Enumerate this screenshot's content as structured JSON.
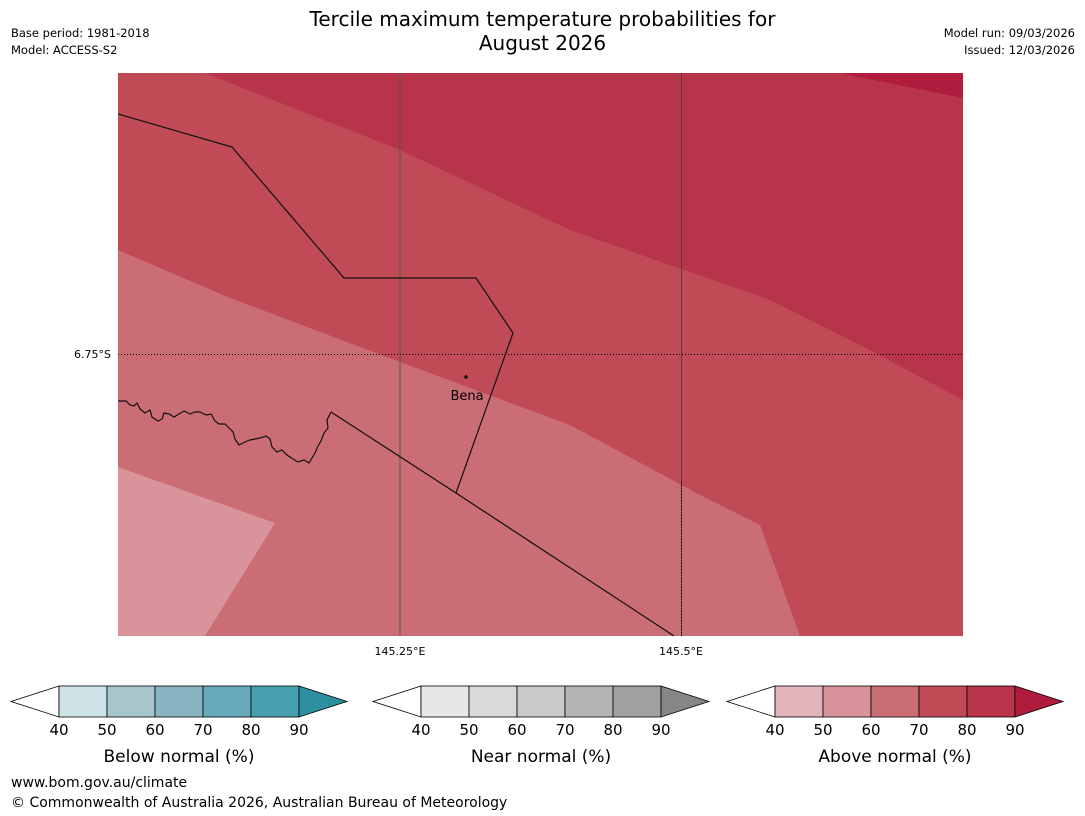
{
  "title": {
    "line1": "Tercile maximum temperature probabilities for",
    "line2": "August 2026"
  },
  "meta": {
    "base_period": "Base period: 1981-2018",
    "model": "Model: ACCESS-S2",
    "model_run": "Model run: 09/03/2026",
    "issued": "Issued: 12/03/2026"
  },
  "map": {
    "lat_label": "6.75°S",
    "lon_labels": [
      "145.25°E",
      "145.5°E"
    ],
    "place": "Bena",
    "colors": {
      "above_50_60": "#d8939b",
      "above_60_70": "#cb6d75",
      "above_70_80": "#c04b57",
      "above_80_90": "#b8344a",
      "above_90plus": "#b01c3d"
    }
  },
  "legend": [
    {
      "id": "below",
      "label": "Below normal (%)",
      "ticks": [
        "40",
        "50",
        "60",
        "70",
        "80",
        "90"
      ],
      "colors": [
        "#cde3e8",
        "#a7c6cc",
        "#89b4c1",
        "#68aabb",
        "#479fae"
      ],
      "extend_color": "#2e8fa0"
    },
    {
      "id": "near",
      "label": "Near normal (%)",
      "ticks": [
        "40",
        "50",
        "60",
        "70",
        "80",
        "90"
      ],
      "colors": [
        "#e7e7e7",
        "#d9d9d9",
        "#c9c9c9",
        "#b5b5b5",
        "#a0a0a0"
      ],
      "extend_color": "#868686"
    },
    {
      "id": "above",
      "label": "Above normal (%)",
      "ticks": [
        "40",
        "50",
        "60",
        "70",
        "80",
        "90"
      ],
      "colors": [
        "#e1b5bb",
        "#d8939b",
        "#cb6d75",
        "#c04b57",
        "#b8344a"
      ],
      "extend_color": "#b01c3d"
    }
  ],
  "footer": {
    "url": "www.bom.gov.au/climate",
    "copyright": "© Commonwealth of Australia 2026, Australian Bureau of Meteorology"
  }
}
